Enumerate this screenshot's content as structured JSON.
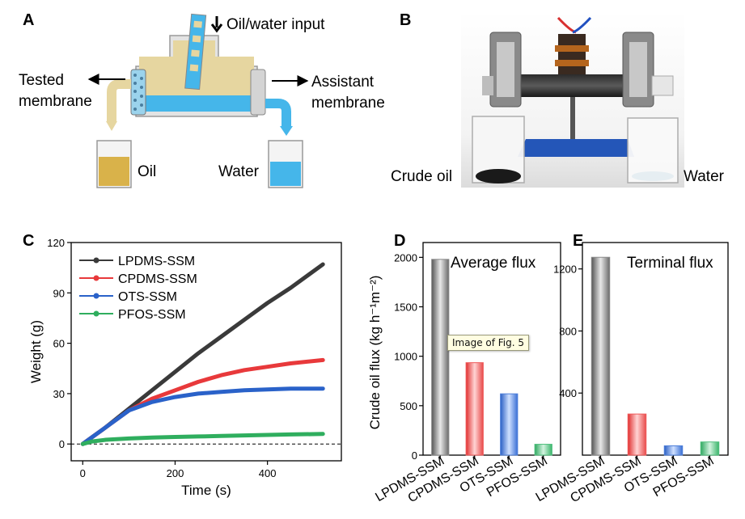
{
  "panels": {
    "A": {
      "letter": "A",
      "input_label": "Oil/water input",
      "tested_line1": "Tested",
      "tested_line2": "membrane",
      "assist_line1": "Assistant",
      "assist_line2": "membrane",
      "oil_label": "Oil",
      "water_label": "Water",
      "colors": {
        "oil": "#d9b24a",
        "water": "#45b6ea",
        "frame": "#bdbdbd"
      }
    },
    "B": {
      "letter": "B",
      "crude_label": "Crude oil",
      "water_label": "Water"
    },
    "C": {
      "letter": "C"
    },
    "D": {
      "letter": "D"
    },
    "E": {
      "letter": "E"
    }
  },
  "tooltip": "Image of Fig. 5",
  "chart_data": [
    {
      "type": "line",
      "panel": "C",
      "xlabel": "Time (s)",
      "ylabel": "Weight (g)",
      "xlim": [
        -25,
        560
      ],
      "ylim": [
        -10,
        120
      ],
      "xticks": [
        0,
        200,
        400
      ],
      "yticks": [
        0,
        30,
        60,
        90,
        120
      ],
      "legend_position": "top-left",
      "baseline": 0,
      "series": [
        {
          "name": "LPDMS-SSM",
          "color": "#3a3a3a",
          "x": [
            0,
            20,
            50,
            100,
            150,
            200,
            250,
            300,
            350,
            400,
            450,
            520
          ],
          "y": [
            0,
            4,
            10,
            21,
            32,
            43,
            54,
            64,
            74,
            84,
            93,
            107
          ]
        },
        {
          "name": "CPDMS-SSM",
          "color": "#e8393b",
          "x": [
            0,
            20,
            50,
            100,
            150,
            200,
            250,
            300,
            350,
            400,
            450,
            520
          ],
          "y": [
            0,
            4,
            10,
            20,
            27,
            32,
            37,
            41,
            44,
            46,
            48,
            50
          ]
        },
        {
          "name": "OTS-SSM",
          "color": "#2a62c9",
          "x": [
            0,
            20,
            50,
            100,
            150,
            200,
            250,
            300,
            350,
            400,
            450,
            520
          ],
          "y": [
            0,
            4,
            10,
            20,
            25,
            28,
            30,
            31,
            32,
            32.5,
            33,
            33
          ]
        },
        {
          "name": "PFOS-SSM",
          "color": "#2fae5e",
          "x": [
            0,
            20,
            50,
            100,
            150,
            200,
            250,
            300,
            350,
            400,
            450,
            520
          ],
          "y": [
            0,
            1.5,
            2.5,
            3.3,
            3.8,
            4.2,
            4.5,
            4.8,
            5.1,
            5.4,
            5.7,
            6
          ]
        }
      ]
    },
    {
      "type": "bar",
      "panel": "D",
      "title": "Average flux",
      "ylabel": "Crude oil flux  (kg h⁻¹m⁻²)",
      "ylim": [
        0,
        2150
      ],
      "yticks": [
        0,
        500,
        1000,
        1500,
        2000
      ],
      "categories": [
        "LPDMS-SSM",
        "CPDMS-SSM",
        "OTS-SSM",
        "PFOS-SSM"
      ],
      "values": [
        1980,
        935,
        620,
        110
      ],
      "colors": [
        "#8a8a8a",
        "#ef5a5a",
        "#4d7fd9",
        "#4fbf7d"
      ]
    },
    {
      "type": "bar",
      "panel": "E",
      "title": "Terminal flux",
      "ylim": [
        0,
        1370
      ],
      "yticks": [
        400,
        800,
        1200
      ],
      "categories": [
        "LPDMS-SSM",
        "CPDMS-SSM",
        "OTS-SSM",
        "PFOS-SSM"
      ],
      "values": [
        1275,
        265,
        60,
        85
      ],
      "colors": [
        "#8a8a8a",
        "#ef5a5a",
        "#4d7fd9",
        "#4fbf7d"
      ]
    }
  ]
}
